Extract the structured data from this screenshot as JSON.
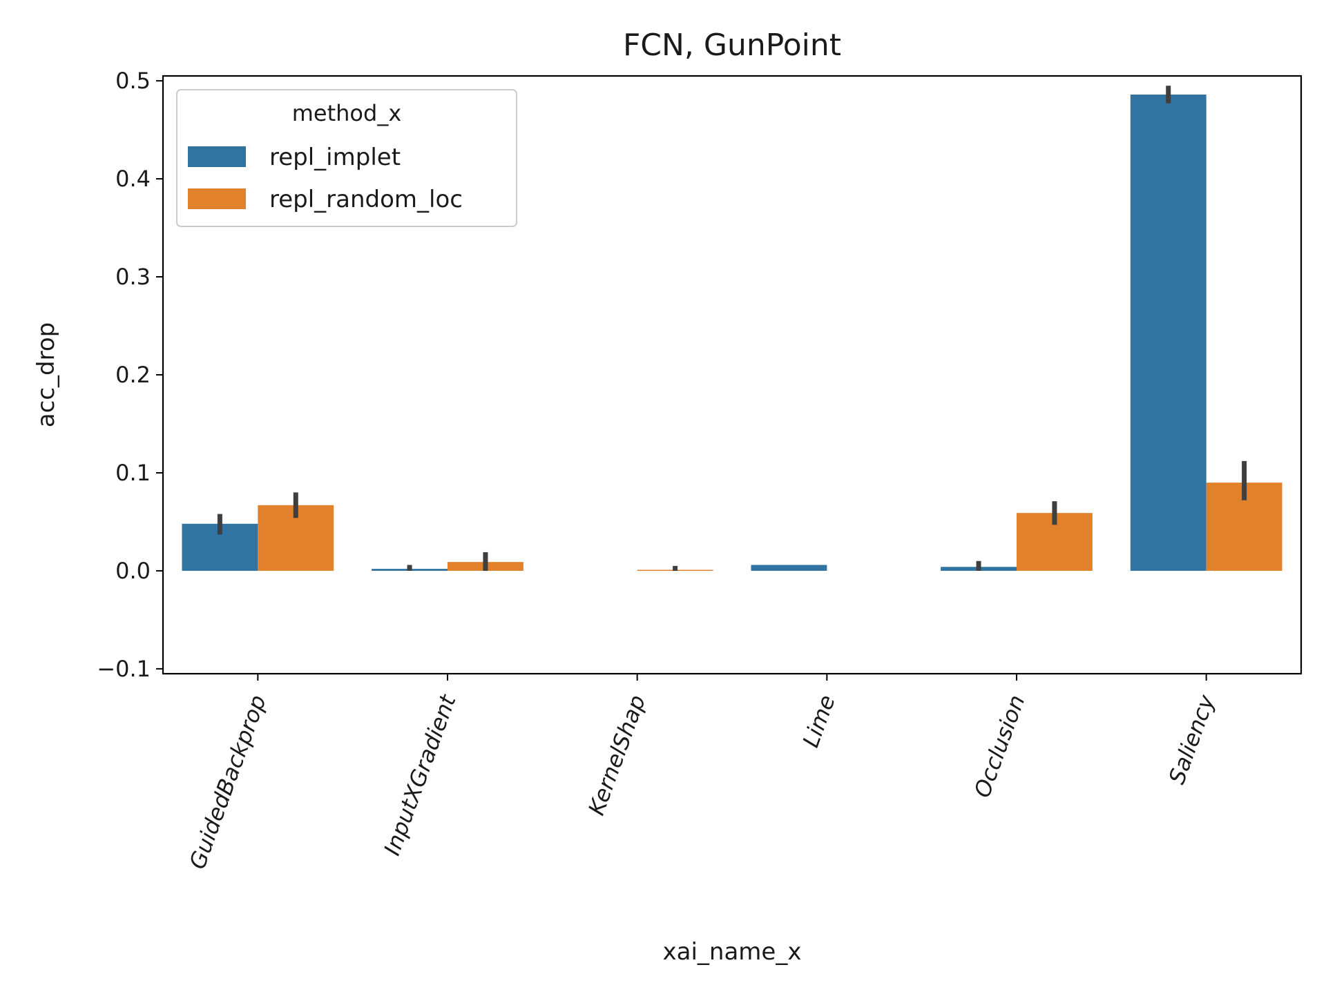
{
  "chart_data": {
    "type": "bar",
    "title": "FCN, GunPoint",
    "xlabel": "xai_name_x",
    "ylabel": "acc_drop",
    "categories": [
      "GuidedBackprop",
      "InputXGradient",
      "KernelShap",
      "Lime",
      "Occlusion",
      "Saliency"
    ],
    "yticks": [
      -0.1,
      0.0,
      0.1,
      0.2,
      0.3,
      0.4,
      0.5
    ],
    "ytick_labels": [
      "−0.1",
      "0.0",
      "0.1",
      "0.2",
      "0.3",
      "0.4",
      "0.5"
    ],
    "ylim": [
      -0.105,
      0.505
    ],
    "grid": false,
    "legend": {
      "title": "method_x",
      "placement": "top-left"
    },
    "series": [
      {
        "name": "repl_implet",
        "color": "#3274a1",
        "values": [
          0.048,
          0.002,
          null,
          0.006,
          0.004,
          0.486
        ],
        "err_low": [
          0.037,
          0.0,
          null,
          0.006,
          0.0,
          0.477
        ],
        "err_high": [
          0.058,
          0.006,
          null,
          0.006,
          0.01,
          0.495
        ]
      },
      {
        "name": "repl_random_loc",
        "color": "#e1812c",
        "values": [
          0.067,
          0.009,
          0.001,
          null,
          0.059,
          0.09
        ],
        "err_low": [
          0.054,
          0.0,
          0.0,
          null,
          0.047,
          0.072
        ],
        "err_high": [
          0.08,
          0.019,
          0.005,
          null,
          0.071,
          0.112
        ]
      }
    ],
    "errorbar_color": "#3f3f3f"
  }
}
